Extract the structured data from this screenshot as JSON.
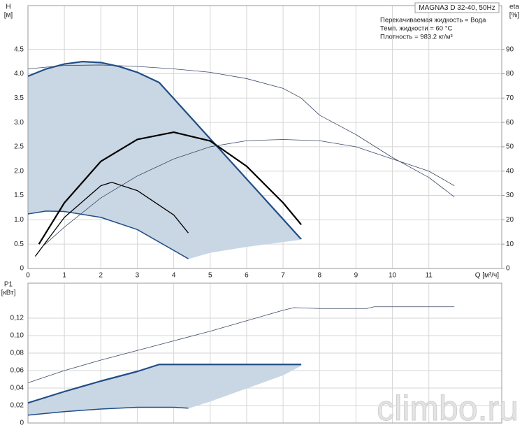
{
  "chart_data": [
    {
      "type": "line",
      "title": "MAGNA3 D 32-40, 50Hz",
      "annotations": [
        "Перекачиваемая жидкость = Вода",
        "Темп. жидкости = 60 °C",
        "Плотность = 983.2 кг/м³"
      ],
      "ylabel": [
        "H",
        "[м]"
      ],
      "y2label": [
        "eta",
        "[%]"
      ],
      "xlabel": "Q [м³/ч]",
      "xlim": [
        0,
        13
      ],
      "xticks": [
        0,
        1,
        2,
        3,
        4,
        5,
        6,
        7,
        8,
        9,
        10,
        11
      ],
      "ylim": [
        0,
        5.4
      ],
      "yticks": [
        0,
        0.5,
        {
          "value": 1,
          "label": "1.0"
        },
        1.5,
        {
          "value": 2,
          "label": "2.0"
        },
        2.5,
        {
          "value": 3,
          "label": "3.0"
        },
        3.5,
        {
          "value": 4,
          "label": "4.0"
        },
        4.5
      ],
      "y2lim": [
        0,
        108
      ],
      "y2ticks": [
        0,
        10,
        20,
        30,
        40,
        50,
        60,
        70,
        80,
        90
      ],
      "grid": true,
      "area_color": "#c9d6e3",
      "series": [
        {
          "color": "#1f4e87",
          "width": 2.2,
          "fill": "upper",
          "x": [
            0,
            0.5,
            1,
            1.5,
            2,
            2.5,
            3,
            3.6,
            7.5
          ],
          "values": [
            3.95,
            4.1,
            4.2,
            4.25,
            4.23,
            4.15,
            4.03,
            3.82,
            0.6
          ]
        },
        {
          "color": "#c9d6e3",
          "width": 1,
          "fill": "edge",
          "x": [
            4.4,
            5,
            6,
            7,
            7.5
          ],
          "values": [
            0.2,
            0.33,
            0.45,
            0.55,
            0.6
          ]
        },
        {
          "color": "#1f4e87",
          "width": 1.5,
          "fill": "lower",
          "x": [
            0,
            0.5,
            1,
            2,
            3,
            4.4
          ],
          "values": [
            1.12,
            1.18,
            1.17,
            1.05,
            0.8,
            0.2
          ]
        },
        {
          "color": "#000000",
          "width": 2.2,
          "x": [
            0.3,
            1,
            2,
            3,
            4,
            5,
            6,
            7,
            7.5
          ],
          "values": [
            0.5,
            1.35,
            2.2,
            2.65,
            2.8,
            2.62,
            2.1,
            1.35,
            0.9
          ]
        },
        {
          "color": "#000000",
          "width": 1.3,
          "x": [
            0.2,
            1,
            2,
            2.3,
            3,
            4,
            4.4
          ],
          "values": [
            0.25,
            1.05,
            1.7,
            1.77,
            1.6,
            1.1,
            0.73
          ]
        },
        {
          "color": "#3a4a66",
          "width": 0.8,
          "x": [
            0,
            1,
            2,
            3,
            4,
            5,
            6,
            7,
            7.5,
            8,
            9,
            10,
            11,
            11.7
          ],
          "values": [
            4.1,
            4.17,
            4.18,
            4.15,
            4.1,
            4.03,
            3.9,
            3.7,
            3.5,
            3.15,
            2.75,
            2.28,
            1.87,
            1.47
          ]
        },
        {
          "color": "#3a4a66",
          "width": 0.8,
          "axis": "y2",
          "x": [
            0.4,
            1,
            2,
            3,
            4,
            5,
            6,
            7,
            8,
            9,
            10,
            11,
            11.7
          ],
          "values": [
            9,
            17,
            29,
            38,
            45,
            50,
            52.5,
            53,
            52.5,
            50,
            45,
            40,
            34
          ]
        }
      ]
    },
    {
      "type": "line",
      "ylabel": [
        "P1",
        "[кВт]"
      ],
      "ylim": [
        0,
        0.16
      ],
      "yticks": [
        0,
        {
          "value": 0.02,
          "label": "0,02"
        },
        {
          "value": 0.04,
          "label": "0,04"
        },
        {
          "value": 0.06,
          "label": "0,06"
        },
        {
          "value": 0.08,
          "label": "0,08"
        },
        {
          "value": 0.1,
          "label": "0,10"
        },
        {
          "value": 0.12,
          "label": "0,12"
        }
      ],
      "grid": true,
      "sharex": true,
      "area_color": "#c9d6e3",
      "watermark": "climbo.ru",
      "series": [
        {
          "color": "#1f4e87",
          "width": 2.2,
          "fill": "upper",
          "x": [
            0,
            1,
            2,
            3,
            3.6,
            7.5
          ],
          "values": [
            0.023,
            0.036,
            0.048,
            0.059,
            0.067,
            0.067
          ]
        },
        {
          "color": "#c9d6e3",
          "width": 1,
          "fill": "edge",
          "x": [
            4.4,
            5,
            6,
            7,
            7.5
          ],
          "values": [
            0.017,
            0.025,
            0.04,
            0.055,
            0.066
          ]
        },
        {
          "color": "#1f4e87",
          "width": 1.5,
          "fill": "lower",
          "x": [
            0,
            1,
            2,
            3,
            4,
            4.4
          ],
          "values": [
            0.009,
            0.013,
            0.016,
            0.018,
            0.018,
            0.017
          ]
        },
        {
          "color": "#3a4a66",
          "width": 0.8,
          "x": [
            0,
            1,
            2,
            3,
            4,
            5,
            6,
            7,
            7.3,
            8,
            9.3,
            9.5,
            11.7
          ],
          "values": [
            0.046,
            0.06,
            0.072,
            0.083,
            0.094,
            0.105,
            0.117,
            0.129,
            0.132,
            0.131,
            0.131,
            0.133,
            0.133
          ]
        }
      ]
    }
  ]
}
